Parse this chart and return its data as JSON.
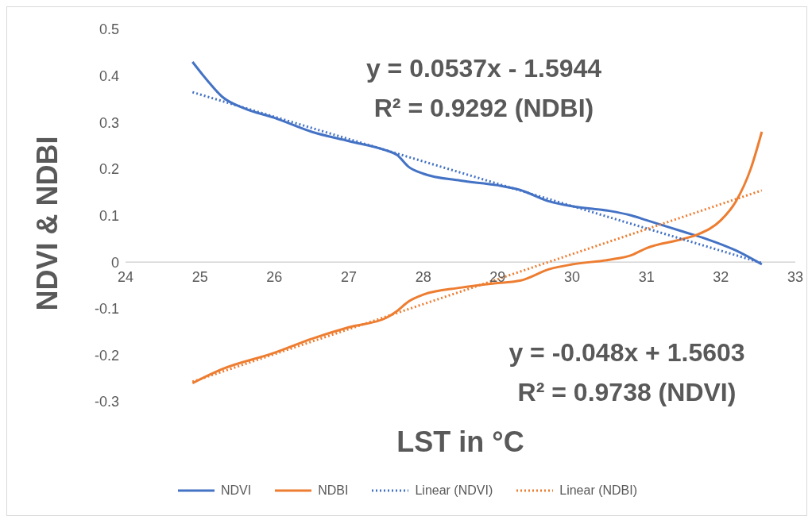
{
  "chart_data": {
    "type": "line",
    "xlabel": "LST in °C",
    "ylabel": "NDVI & NDBI",
    "annotations": [
      "y = 0.0537x - 1.5944\nR² = 0.9292 (NDBI)",
      "y = -0.048x + 1.5603\nR² = 0.9738 (NDVI)"
    ],
    "xlim": [
      24,
      33
    ],
    "xticks": [
      24,
      25,
      26,
      27,
      28,
      29,
      30,
      31,
      32,
      33
    ],
    "ylim": [
      -0.3,
      0.5
    ],
    "yticks": [
      -0.3,
      -0.2,
      -0.1,
      0,
      0.1,
      0.2,
      0.3,
      0.4,
      0.5
    ],
    "grid": false,
    "legend": "bottom",
    "marker": "none",
    "series": [
      {
        "name": "NDVI",
        "color": "#4472c4",
        "line_style": "solid",
        "x": [
          24.9,
          25.1,
          25.3,
          25.6,
          26,
          26.5,
          27,
          27.5,
          27.65,
          27.8,
          28,
          28.5,
          29,
          29.3,
          29.7,
          30,
          30.5,
          30.8,
          31,
          31.5,
          31.8,
          32.2,
          32.55
        ],
        "values": [
          0.43,
          0.39,
          0.355,
          0.33,
          0.31,
          0.28,
          0.26,
          0.24,
          0.23,
          0.205,
          0.19,
          0.175,
          0.165,
          0.155,
          0.13,
          0.12,
          0.11,
          0.1,
          0.09,
          0.065,
          0.05,
          0.025,
          -0.005
        ]
      },
      {
        "name": "NDBI",
        "color": "#ed7d31",
        "line_style": "solid",
        "x": [
          24.9,
          25.3,
          26,
          26.5,
          27,
          27.5,
          27.65,
          27.8,
          28,
          28.5,
          29,
          29.3,
          29.7,
          30,
          30.5,
          30.8,
          31,
          31.5,
          31.7,
          32,
          32.2,
          32.4,
          32.55
        ],
        "values": [
          -0.26,
          -0.23,
          -0.195,
          -0.165,
          -0.14,
          -0.12,
          -0.105,
          -0.085,
          -0.07,
          -0.055,
          -0.045,
          -0.04,
          -0.015,
          -0.005,
          0.005,
          0.015,
          0.03,
          0.05,
          0.06,
          0.09,
          0.13,
          0.2,
          0.28
        ]
      },
      {
        "name": "Linear (NDVI)",
        "color": "#4472c4",
        "line_style": "dotted",
        "x": [
          24.9,
          32.55
        ],
        "values": [
          0.365,
          -0.002
        ]
      },
      {
        "name": "Linear (NDBI)",
        "color": "#ed7d31",
        "line_style": "dotted",
        "x": [
          24.9,
          32.55
        ],
        "values": [
          -0.257,
          0.154
        ]
      }
    ]
  }
}
